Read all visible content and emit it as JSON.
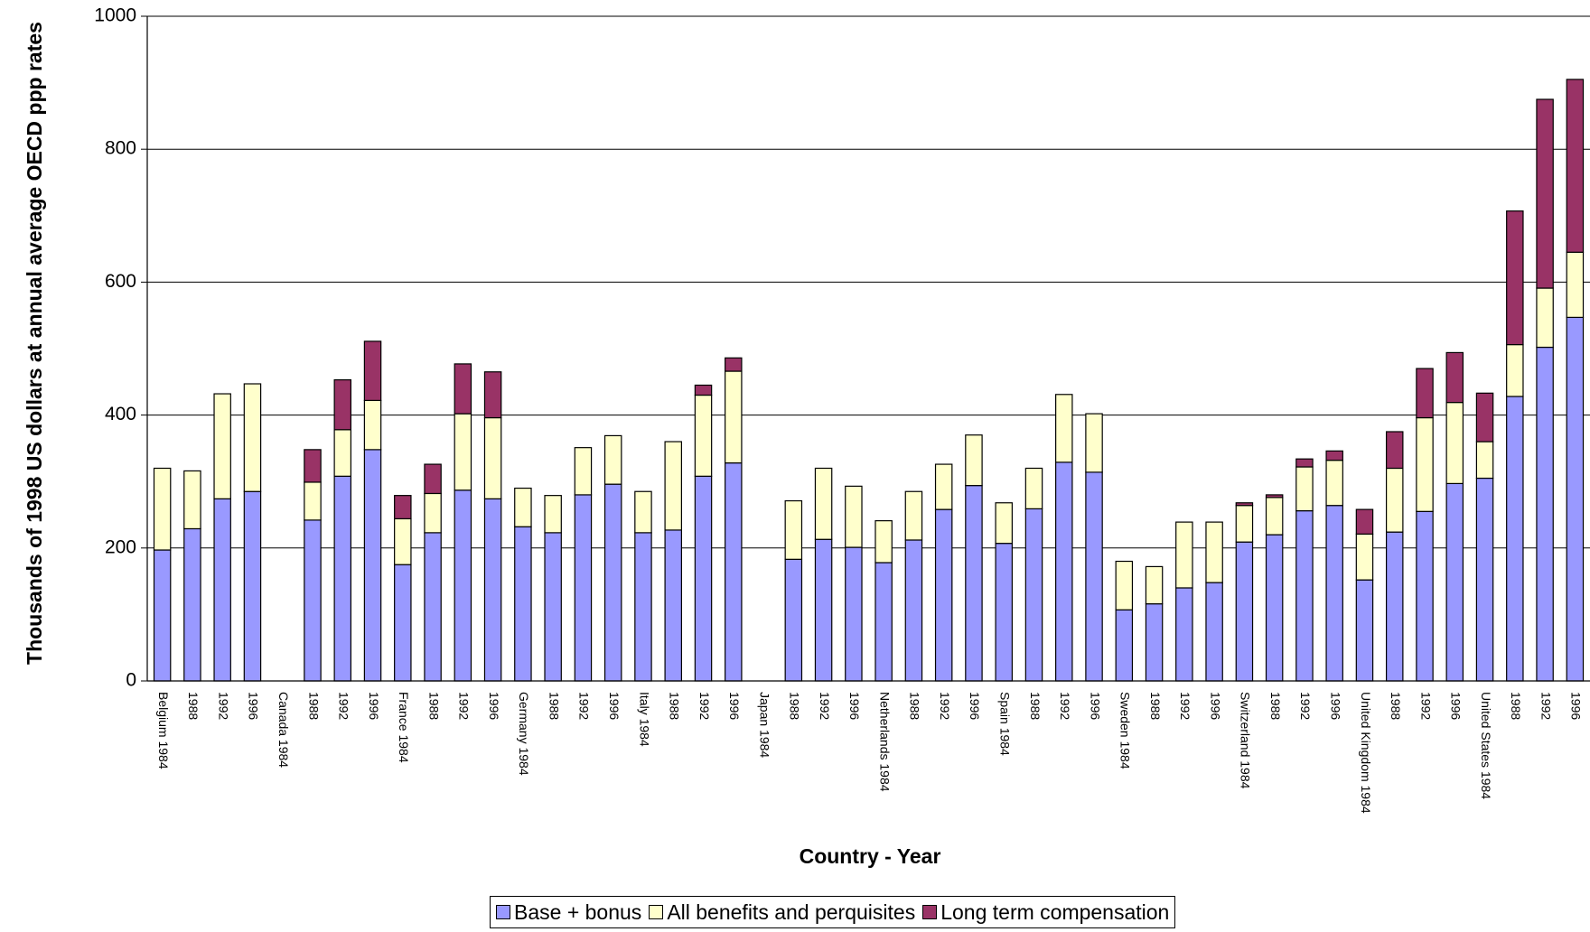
{
  "chart_data": {
    "type": "stacked_bar",
    "x_label": "Country - Year",
    "y_label": "Thousands of 1998 US dollars at annual average OECD ppp rates",
    "categories": [
      "Belgium 1984",
      "1988",
      "1992",
      "1996",
      "Canada 1984",
      "1988",
      "1992",
      "1996",
      "France 1984",
      "1988",
      "1992",
      "1996",
      "Germany 1984",
      "1988",
      "1992",
      "1996",
      "Italy 1984",
      "1988",
      "1992",
      "1996",
      "Japan 1984",
      "1988",
      "1992",
      "1996",
      "Netherlands 1984",
      "1988",
      "1992",
      "1996",
      "Spain 1984",
      "1988",
      "1992",
      "1996",
      "Sweden 1984",
      "1988",
      "1992",
      "1996",
      "Switzerland 1984",
      "1988",
      "1992",
      "1996",
      "United Kingdom 1984",
      "1988",
      "1992",
      "1996",
      "United States 1984",
      "1988",
      "1992",
      "1996"
    ],
    "series": [
      {
        "name": "Base + bonus",
        "color": "#9999ff",
        "values": [
          197,
          229,
          274,
          285,
          null,
          242,
          308,
          348,
          175,
          223,
          287,
          274,
          232,
          223,
          280,
          296,
          223,
          227,
          308,
          328,
          null,
          183,
          213,
          201,
          178,
          212,
          258,
          294,
          207,
          259,
          329,
          314,
          107,
          116,
          140,
          148,
          209,
          220,
          256,
          264,
          152,
          224,
          255,
          297,
          305,
          428,
          502,
          547
        ]
      },
      {
        "name": "All benefits and perquisites",
        "color": "#ffffcc",
        "values": [
          123,
          87,
          158,
          162,
          null,
          57,
          70,
          74,
          69,
          59,
          115,
          122,
          58,
          56,
          71,
          73,
          62,
          133,
          122,
          138,
          null,
          88,
          107,
          92,
          63,
          73,
          68,
          76,
          61,
          61,
          102,
          88,
          73,
          56,
          99,
          91,
          55,
          56,
          66,
          68,
          69,
          96,
          141,
          122,
          55,
          78,
          89,
          98
        ]
      },
      {
        "name": "Long term compensation",
        "color": "#993366",
        "values": [
          0,
          0,
          0,
          0,
          null,
          49,
          75,
          89,
          35,
          44,
          75,
          69,
          0,
          0,
          0,
          0,
          0,
          0,
          15,
          20,
          null,
          0,
          0,
          0,
          0,
          0,
          0,
          0,
          0,
          0,
          0,
          0,
          0,
          0,
          0,
          0,
          4,
          4,
          12,
          14,
          37,
          55,
          74,
          75,
          73,
          201,
          284,
          260
        ]
      }
    ],
    "ylim": [
      0,
      1000
    ],
    "yticks": [
      0,
      200,
      400,
      600,
      800,
      1000
    ],
    "grid": true
  }
}
